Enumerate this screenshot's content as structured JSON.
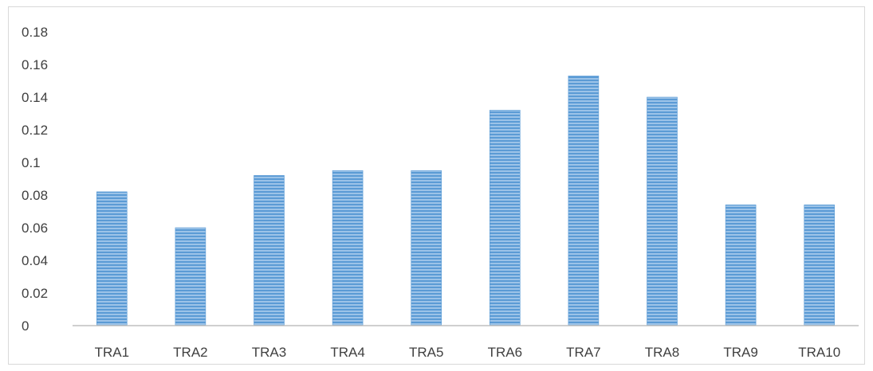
{
  "chart_data": {
    "type": "bar",
    "title": "",
    "xlabel": "",
    "ylabel": "",
    "categories": [
      "TRA1",
      "TRA2",
      "TRA3",
      "TRA4",
      "TRA5",
      "TRA6",
      "TRA7",
      "TRA8",
      "TRA9",
      "TRA10"
    ],
    "values": [
      0.082,
      0.06,
      0.092,
      0.095,
      0.095,
      0.132,
      0.153,
      0.14,
      0.074,
      0.074
    ],
    "ylim": [
      0,
      0.18
    ],
    "yticks": [
      "0",
      "0.02",
      "0.04",
      "0.06",
      "0.08",
      "0.1",
      "0.12",
      "0.14",
      "0.16",
      "0.18"
    ],
    "grid": false,
    "legend": "none",
    "bar_color": "#5b9bd5",
    "bar_pattern": "horizontal-stripes",
    "axis_color": "#bfbfbf"
  }
}
